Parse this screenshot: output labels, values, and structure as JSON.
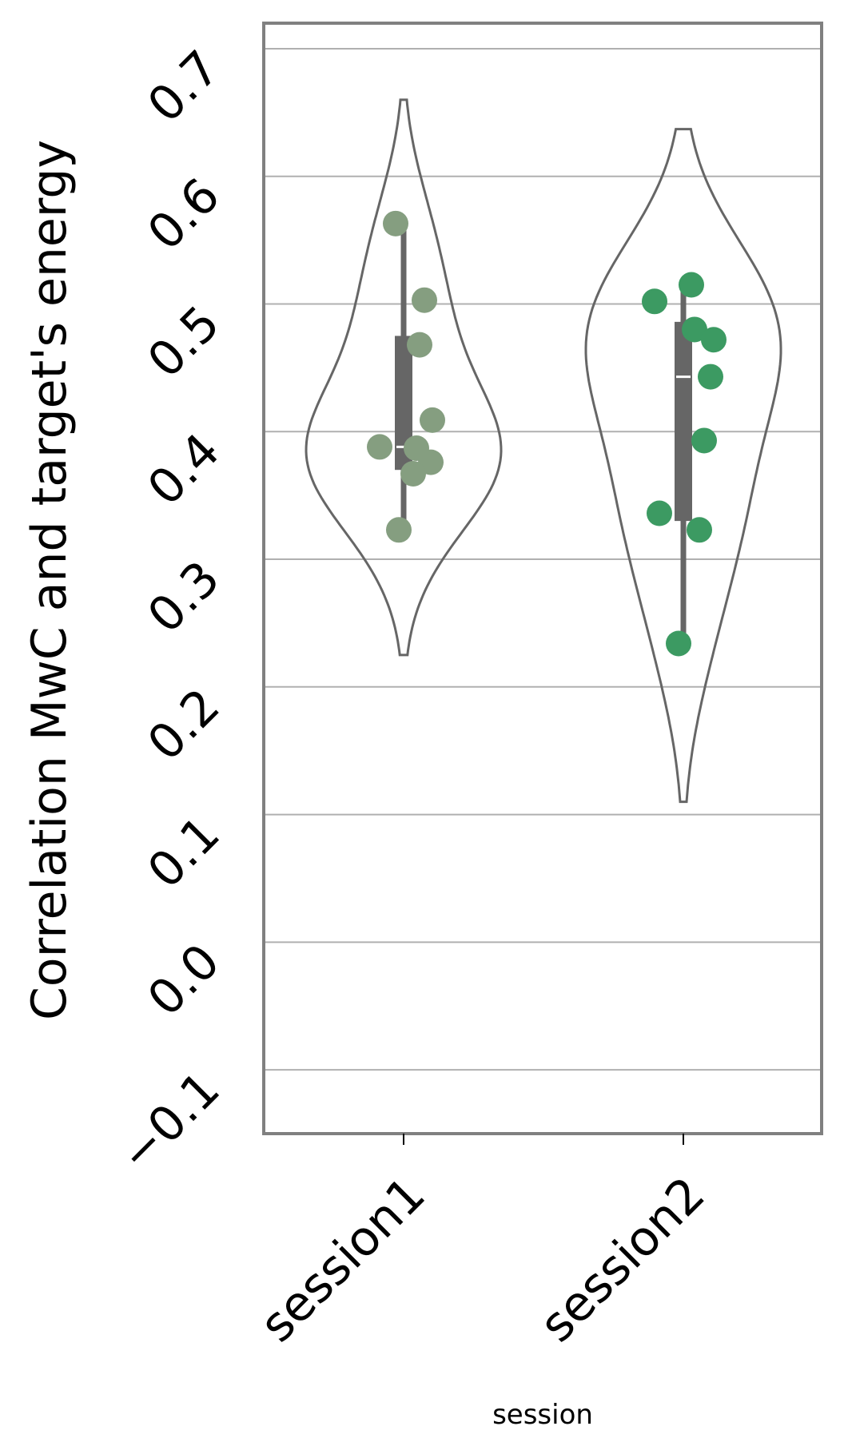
{
  "chart_data": {
    "type": "violin",
    "title": "",
    "xlabel": "session",
    "ylabel": "Correlation MwC and target's energy",
    "categories": [
      "session1",
      "session2"
    ],
    "ylim": [
      -0.15,
      0.72
    ],
    "yticks": [
      -0.1,
      0.0,
      0.1,
      0.2,
      0.3,
      0.4,
      0.5,
      0.6,
      0.7
    ],
    "ytick_labels": [
      "−0.1",
      "0.0",
      "0.1",
      "0.2",
      "0.3",
      "0.4",
      "0.5",
      "0.6",
      "0.7"
    ],
    "grid": "horizontal",
    "legend": "none",
    "series": [
      {
        "category": "session1",
        "color": "#859e80",
        "points": [
          0.563,
          0.503,
          0.468,
          0.409,
          0.388,
          0.387,
          0.376,
          0.367,
          0.323
        ],
        "violin_range": [
          0.225,
          0.66
        ],
        "quartiles": [
          0.37,
          0.475
        ],
        "median": 0.388,
        "whiskers": [
          0.323,
          0.563
        ]
      },
      {
        "category": "session2",
        "color": "#3c9a62",
        "points": [
          0.515,
          0.502,
          0.48,
          0.472,
          0.443,
          0.393,
          0.336,
          0.323,
          0.234
        ],
        "violin_range": [
          0.11,
          0.637
        ],
        "quartiles": [
          0.33,
          0.486
        ],
        "median": 0.443,
        "whiskers": [
          0.234,
          0.515
        ]
      }
    ],
    "colors": {
      "violin_outline": "#666666",
      "box": "#666666",
      "median": "#ffffff",
      "grid": "#b0b0b0",
      "frame": "#808080"
    }
  }
}
